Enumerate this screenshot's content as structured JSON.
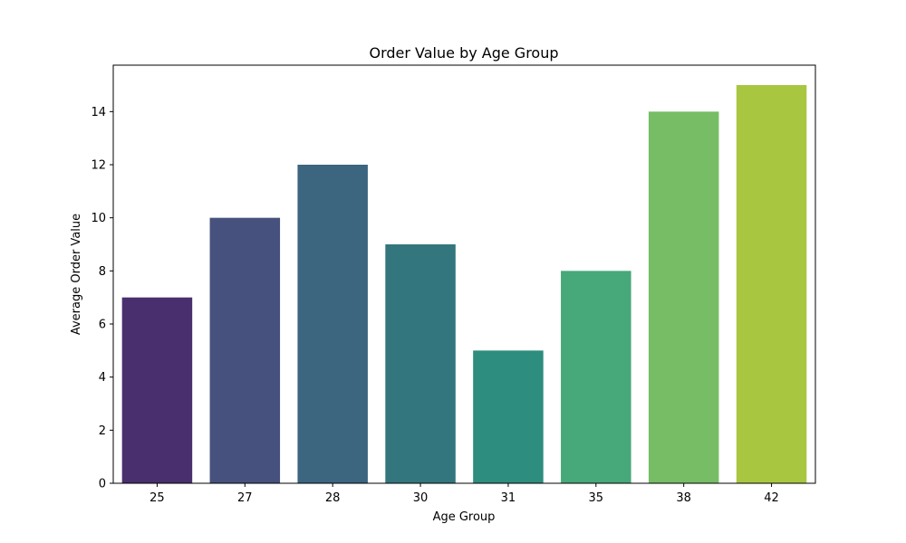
{
  "chart_data": {
    "type": "bar",
    "title": "Order Value by Age Group",
    "xlabel": "Age Group",
    "ylabel": "Average Order Value",
    "categories": [
      "25",
      "27",
      "28",
      "30",
      "31",
      "35",
      "38",
      "42"
    ],
    "values": [
      7,
      10,
      12,
      9,
      5,
      8,
      14,
      15
    ],
    "colors": [
      "#4a2f6e",
      "#47517d",
      "#3c6580",
      "#33767d",
      "#2d8d7e",
      "#47a879",
      "#76bd66",
      "#a9c641"
    ],
    "ylim": [
      0,
      15.75
    ],
    "yticks": [
      0,
      2,
      4,
      6,
      8,
      10,
      12,
      14
    ],
    "grid": false,
    "legend": "none"
  }
}
